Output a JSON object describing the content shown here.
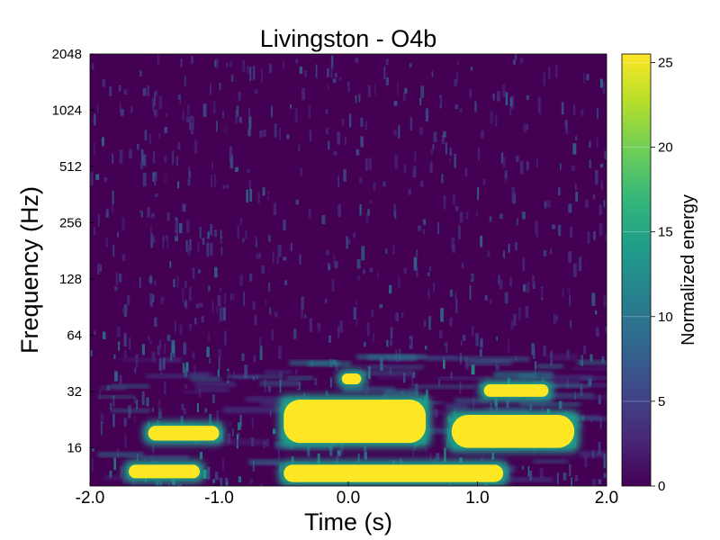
{
  "chart_data": {
    "type": "heatmap",
    "title": "Livingston - O4b",
    "xlabel": "Time (s)",
    "ylabel": "Frequency (Hz)",
    "xlim": [
      -2.0,
      2.0
    ],
    "ylim": [
      10,
      2048
    ],
    "yscale": "log2",
    "x_ticks": [
      {
        "value": -2.0,
        "label": "-2.0"
      },
      {
        "value": -1.0,
        "label": "-1.0"
      },
      {
        "value": 0.0,
        "label": "0.0"
      },
      {
        "value": 1.0,
        "label": "1.0"
      },
      {
        "value": 2.0,
        "label": "2.0"
      }
    ],
    "y_ticks": [
      {
        "value": 16,
        "label": "16"
      },
      {
        "value": 32,
        "label": "32"
      },
      {
        "value": 64,
        "label": "64"
      },
      {
        "value": 128,
        "label": "128"
      },
      {
        "value": 256,
        "label": "256"
      },
      {
        "value": 512,
        "label": "512"
      },
      {
        "value": 1024,
        "label": "1024"
      },
      {
        "value": 2048,
        "label": "2048"
      }
    ],
    "colorbar": {
      "label": "Normalized energy",
      "range": [
        0,
        25.5
      ],
      "ticks": [
        {
          "value": 0,
          "label": "0"
        },
        {
          "value": 5,
          "label": "5"
        },
        {
          "value": 10,
          "label": "10"
        },
        {
          "value": 15,
          "label": "15"
        },
        {
          "value": 20,
          "label": "20"
        },
        {
          "value": 25,
          "label": "25"
        }
      ],
      "colormap": "viridis",
      "stops": [
        "#440154",
        "#482878",
        "#3e4989",
        "#31688e",
        "#26828e",
        "#1f9e89",
        "#35b779",
        "#6ece58",
        "#b5de2b",
        "#fde725"
      ]
    },
    "features": [
      {
        "t_start": -0.5,
        "t_end": 0.6,
        "f_low": 17,
        "f_high": 29,
        "energy": 25.5
      },
      {
        "t_start": 0.8,
        "t_end": 1.75,
        "f_low": 16,
        "f_high": 24,
        "energy": 25.5
      },
      {
        "t_start": 1.05,
        "t_end": 1.55,
        "f_low": 30,
        "f_high": 35,
        "energy": 25.5
      },
      {
        "t_start": -1.55,
        "t_end": -1.0,
        "f_low": 17.5,
        "f_high": 21,
        "energy": 25.5
      },
      {
        "t_start": -1.7,
        "t_end": -1.15,
        "f_low": 11,
        "f_high": 13,
        "energy": 25.5
      },
      {
        "t_start": -0.5,
        "t_end": 1.2,
        "f_low": 10.5,
        "f_high": 13,
        "energy": 25.5
      },
      {
        "t_start": -0.05,
        "t_end": 0.1,
        "f_low": 35,
        "f_high": 40,
        "energy": 25.5
      }
    ]
  }
}
